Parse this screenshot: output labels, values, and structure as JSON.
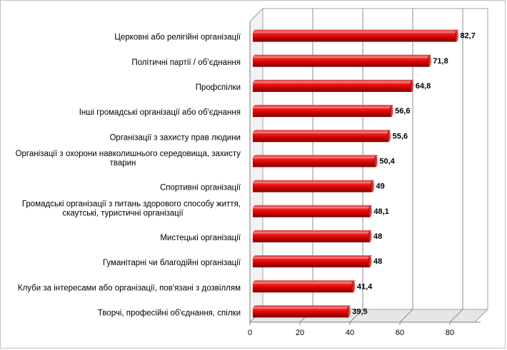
{
  "chart_data": {
    "type": "bar",
    "orientation": "horizontal",
    "style": "3d-cylinder",
    "bar_color": "#cc0000",
    "categories": [
      "Церковні або релігійні організації",
      "Політичні партії / об’єднання",
      "Профспілки",
      "Інші громадські організації або об'єднання",
      "Організації з захисту прав людини",
      "Організації з охорони навколишнього середовища, захисту тварин",
      "Спортивні організації",
      "Громадські організації з питань здорового способу життя, скаутські, туристичні організації",
      "Мистецькі організації",
      "Гуманітарні чи благодійні організації",
      "Клуби за інтересами або організації, пов'язані з дозвіллям",
      "Творчі, професійні об'єднання, спілки"
    ],
    "category_lines": [
      [
        "Церковні або релігійні організації"
      ],
      [
        "Політичні партії / об’єднання"
      ],
      [
        "Профспілки"
      ],
      [
        "Інші громадські організації або об'єднання"
      ],
      [
        "Організації з захисту прав людини"
      ],
      [
        "Організації з охорони навколишнього середовища, захисту",
        "тварин"
      ],
      [
        "Спортивні організації"
      ],
      [
        "Громадські організації з питань здорового способу життя,",
        "скаутські, туристичні організації"
      ],
      [
        "Мистецькі організації"
      ],
      [
        "Гуманітарні чи благодійні організації"
      ],
      [
        "Клуби за інтересами або організації, пов'язані з дозвіллям"
      ],
      [
        "Творчі, професійні об'єднання, спілки"
      ]
    ],
    "values": [
      82.7,
      71.8,
      64.8,
      56.6,
      55.6,
      50.4,
      49,
      48.1,
      48,
      48,
      41.4,
      39.5
    ],
    "value_labels": [
      "82,7",
      "71,8",
      "64,8",
      "56,6",
      "55,6",
      "50,4",
      "49",
      "48,1",
      "48",
      "48",
      "41,4",
      "39,5"
    ],
    "x_ticks": [
      0,
      20,
      40,
      60,
      80
    ],
    "xlim": [
      0,
      90
    ],
    "grid": true,
    "legend": "none",
    "title": "",
    "xlabel": "",
    "ylabel": ""
  }
}
